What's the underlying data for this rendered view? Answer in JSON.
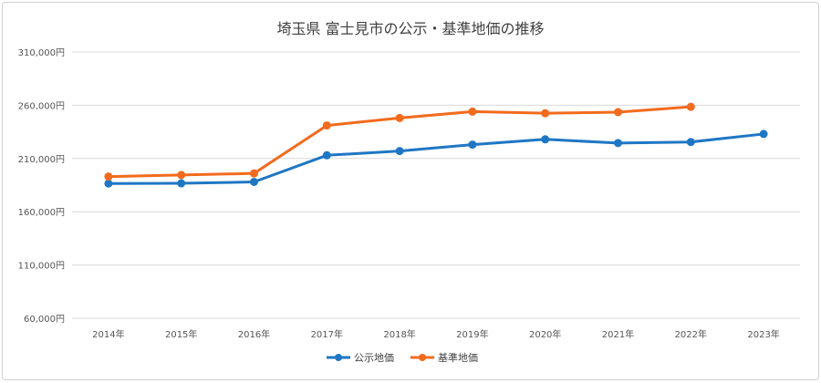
{
  "chart_data": {
    "type": "line",
    "title": "埼玉県 富士見市の公示・基準地価の推移",
    "categories": [
      "2014年",
      "2015年",
      "2016年",
      "2017年",
      "2018年",
      "2019年",
      "2020年",
      "2021年",
      "2022年",
      "2023年"
    ],
    "y_ticks": [
      "60,000円",
      "110,000円",
      "160,000円",
      "210,000円",
      "260,000円",
      "310,000円"
    ],
    "ylim": [
      60000,
      310000
    ],
    "grid": true,
    "legend_position": "bottom",
    "series": [
      {
        "name": "公示地価",
        "color": "#1f77c4",
        "values": [
          186500,
          186700,
          188000,
          213000,
          217000,
          223000,
          228000,
          224500,
          225500,
          233000
        ]
      },
      {
        "name": "基準地価",
        "color": "#f26b1d",
        "values": [
          193000,
          194500,
          196000,
          241000,
          248000,
          254000,
          252500,
          253500,
          258500,
          null
        ]
      }
    ]
  }
}
